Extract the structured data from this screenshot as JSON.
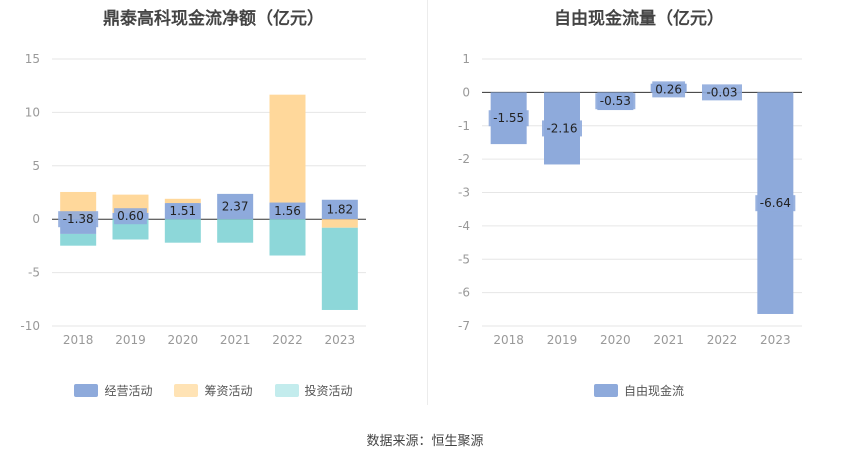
{
  "source": "数据来源：恒生聚源",
  "chart_data": [
    {
      "type": "bar",
      "stacked": true,
      "title": "鼎泰高科现金流净额（亿元）",
      "categories": [
        "2018",
        "2019",
        "2020",
        "2021",
        "2022",
        "2023"
      ],
      "ylim": [
        -10,
        15
      ],
      "yticks": [
        -10,
        -5,
        0,
        5,
        10,
        15
      ],
      "grid": true,
      "legend_position": "bottom",
      "series": [
        {
          "name": "经营活动",
          "color": "#8eaadb",
          "values": [
            -1.38,
            0.6,
            1.51,
            2.37,
            1.56,
            1.82
          ],
          "labels": [
            "-1.38",
            "0.60",
            "1.51",
            "2.37",
            "1.56",
            "1.82"
          ]
        },
        {
          "name": "筹资活动",
          "color": "#ffd89b",
          "values": [
            2.55,
            1.7,
            0.4,
            0.0,
            10.1,
            -0.8
          ]
        },
        {
          "name": "投资活动",
          "color": "#8dd7d9",
          "values": [
            -1.1,
            -1.9,
            -2.2,
            -2.2,
            -3.4,
            -7.7
          ],
          "legend_color": "#c3eced"
        }
      ]
    },
    {
      "type": "bar",
      "title": "自由现金流量（亿元）",
      "categories": [
        "2018",
        "2019",
        "2020",
        "2021",
        "2022",
        "2023"
      ],
      "ylim": [
        -7,
        1
      ],
      "yticks": [
        -7,
        -6,
        -5,
        -4,
        -3,
        -2,
        -1,
        0,
        1
      ],
      "grid": true,
      "legend_position": "bottom",
      "series": [
        {
          "name": "自由现金流",
          "color": "#8eaadb",
          "values": [
            -1.55,
            -2.16,
            -0.53,
            0.26,
            -0.03,
            -6.64
          ],
          "labels": [
            "-1.55",
            "-2.16",
            "-0.53",
            "0.26",
            "-0.03",
            "-6.64"
          ]
        }
      ]
    }
  ]
}
